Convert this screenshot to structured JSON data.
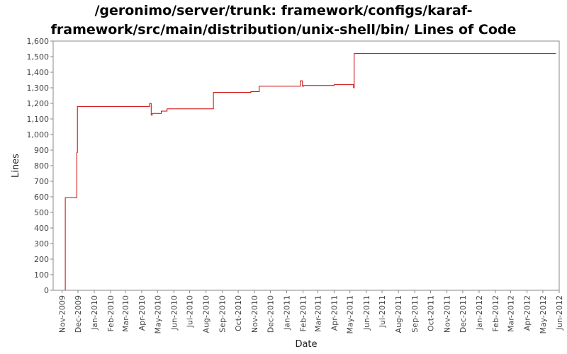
{
  "chart_data": {
    "type": "line",
    "title_lines": [
      "/geronimo/server/trunk: framework/configs/karaf-",
      "framework/src/main/distribution/unix-shell/bin/ Lines of Code"
    ],
    "xlabel": "Date",
    "ylabel": "Lines",
    "ylim": [
      0,
      1600
    ],
    "xlim": [
      "2009-10-15",
      "2012-06-01"
    ],
    "y_ticks": [
      "0",
      "100",
      "200",
      "300",
      "400",
      "500",
      "600",
      "700",
      "800",
      "900",
      "1,000",
      "1,100",
      "1,200",
      "1,300",
      "1,400",
      "1,500",
      "1,600"
    ],
    "x_ticks": [
      "Nov-2009",
      "Dec-2009",
      "Jan-2010",
      "Feb-2010",
      "Mar-2010",
      "Apr-2010",
      "May-2010",
      "Jun-2010",
      "Jul-2010",
      "Aug-2010",
      "Sep-2010",
      "Oct-2010",
      "Nov-2010",
      "Dec-2010",
      "Jan-2011",
      "Feb-2011",
      "Mar-2011",
      "Apr-2011",
      "May-2011",
      "Jun-2011",
      "Jul-2011",
      "Aug-2011",
      "Sep-2011",
      "Oct-2011",
      "Nov-2011",
      "Dec-2011",
      "Jan-2012",
      "Feb-2012",
      "Mar-2012",
      "Apr-2012",
      "May-2012",
      "Jun-2012"
    ],
    "grid": false,
    "series": [
      {
        "color": "#cc0000",
        "step": true,
        "points": [
          [
            "2009-11-07",
            0
          ],
          [
            "2009-11-07",
            595
          ],
          [
            "2009-11-29",
            595
          ],
          [
            "2009-11-29",
            885
          ],
          [
            "2009-11-30",
            885
          ],
          [
            "2009-11-30",
            1180
          ],
          [
            "2010-04-16",
            1180
          ],
          [
            "2010-04-16",
            1200
          ],
          [
            "2010-04-19",
            1200
          ],
          [
            "2010-04-19",
            1125
          ],
          [
            "2010-04-21",
            1125
          ],
          [
            "2010-04-21",
            1135
          ],
          [
            "2010-05-08",
            1135
          ],
          [
            "2010-05-08",
            1150
          ],
          [
            "2010-05-19",
            1150
          ],
          [
            "2010-05-19",
            1165
          ],
          [
            "2010-08-15",
            1165
          ],
          [
            "2010-08-15",
            1270
          ],
          [
            "2010-10-25",
            1270
          ],
          [
            "2010-10-25",
            1275
          ],
          [
            "2010-11-10",
            1275
          ],
          [
            "2010-11-10",
            1310
          ],
          [
            "2011-01-27",
            1310
          ],
          [
            "2011-01-27",
            1345
          ],
          [
            "2011-01-31",
            1345
          ],
          [
            "2011-01-31",
            1310
          ],
          [
            "2011-02-02",
            1310
          ],
          [
            "2011-02-02",
            1315
          ],
          [
            "2011-04-01",
            1315
          ],
          [
            "2011-04-01",
            1320
          ],
          [
            "2011-05-08",
            1320
          ],
          [
            "2011-05-08",
            1300
          ],
          [
            "2011-05-09",
            1300
          ],
          [
            "2011-05-09",
            1520
          ],
          [
            "2012-05-26",
            1520
          ]
        ]
      }
    ]
  }
}
